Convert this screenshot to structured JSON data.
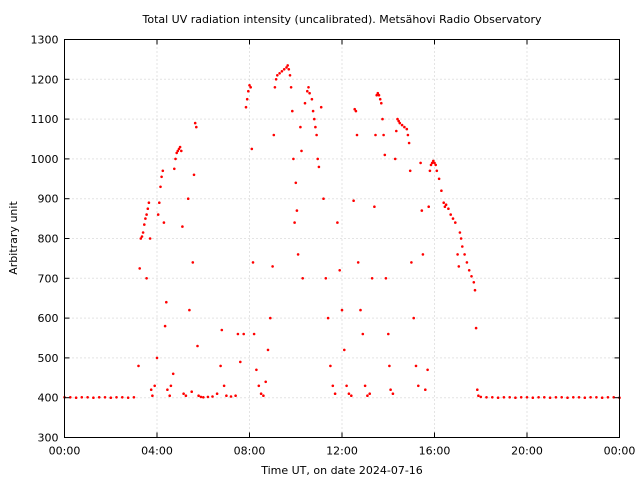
{
  "chart_data": {
    "type": "scatter",
    "title": "Total UV radiation intensity (uncalibrated). Metsähovi Radio Observatory",
    "xlabel": "Time UT, on date 2024-07-16",
    "ylabel": "Arbitrary unit",
    "xlim": [
      0,
      24
    ],
    "ylim": [
      300,
      1300
    ],
    "x_ticks": [
      {
        "value": 0,
        "label": "00:00"
      },
      {
        "value": 4,
        "label": "04:00"
      },
      {
        "value": 8,
        "label": "08:00"
      },
      {
        "value": 12,
        "label": "12:00"
      },
      {
        "value": 16,
        "label": "16:00"
      },
      {
        "value": 20,
        "label": "20:00"
      },
      {
        "value": 24,
        "label": "00:00"
      }
    ],
    "y_ticks": [
      300,
      400,
      500,
      600,
      700,
      800,
      900,
      1000,
      1100,
      1200,
      1300
    ],
    "grid": true,
    "legend": "none",
    "marker_color": "#ff0000",
    "series": [
      {
        "points": [
          [
            0.0,
            401
          ],
          [
            0.25,
            401
          ],
          [
            0.5,
            400
          ],
          [
            0.75,
            401
          ],
          [
            1.0,
            401
          ],
          [
            1.25,
            400
          ],
          [
            1.5,
            401
          ],
          [
            1.75,
            401
          ],
          [
            2.0,
            400
          ],
          [
            2.25,
            401
          ],
          [
            2.5,
            401
          ],
          [
            2.75,
            400
          ],
          [
            3.0,
            401
          ],
          [
            3.2,
            480
          ],
          [
            3.25,
            725
          ],
          [
            3.3,
            800
          ],
          [
            3.35,
            805
          ],
          [
            3.4,
            815
          ],
          [
            3.45,
            835
          ],
          [
            3.5,
            850
          ],
          [
            3.55,
            860
          ],
          [
            3.6,
            875
          ],
          [
            3.65,
            890
          ],
          [
            3.55,
            700
          ],
          [
            3.7,
            800
          ],
          [
            3.75,
            420
          ],
          [
            3.8,
            405
          ],
          [
            3.9,
            430
          ],
          [
            4.0,
            500
          ],
          [
            4.05,
            860
          ],
          [
            4.1,
            890
          ],
          [
            4.15,
            930
          ],
          [
            4.2,
            955
          ],
          [
            4.25,
            970
          ],
          [
            4.3,
            840
          ],
          [
            4.35,
            580
          ],
          [
            4.4,
            640
          ],
          [
            4.45,
            420
          ],
          [
            4.55,
            405
          ],
          [
            4.6,
            430
          ],
          [
            4.7,
            460
          ],
          [
            4.75,
            975
          ],
          [
            4.8,
            1000
          ],
          [
            4.85,
            1015
          ],
          [
            4.9,
            1020
          ],
          [
            4.95,
            1025
          ],
          [
            5.0,
            1030
          ],
          [
            5.05,
            1020
          ],
          [
            5.1,
            830
          ],
          [
            5.15,
            410
          ],
          [
            5.25,
            405
          ],
          [
            5.35,
            900
          ],
          [
            5.4,
            620
          ],
          [
            5.5,
            415
          ],
          [
            5.55,
            740
          ],
          [
            5.6,
            960
          ],
          [
            5.65,
            1090
          ],
          [
            5.7,
            1080
          ],
          [
            5.75,
            530
          ],
          [
            5.8,
            405
          ],
          [
            5.9,
            402
          ],
          [
            6.0,
            401
          ],
          [
            6.2,
            402
          ],
          [
            6.4,
            403
          ],
          [
            6.6,
            410
          ],
          [
            6.75,
            480
          ],
          [
            6.8,
            570
          ],
          [
            6.9,
            430
          ],
          [
            7.0,
            405
          ],
          [
            7.2,
            403
          ],
          [
            7.4,
            405
          ],
          [
            7.5,
            560
          ],
          [
            7.6,
            490
          ],
          [
            7.75,
            560
          ],
          [
            7.85,
            1130
          ],
          [
            7.9,
            1150
          ],
          [
            7.95,
            1170
          ],
          [
            8.0,
            1185
          ],
          [
            8.05,
            1180
          ],
          [
            8.1,
            1025
          ],
          [
            8.15,
            740
          ],
          [
            8.2,
            560
          ],
          [
            8.3,
            470
          ],
          [
            8.4,
            430
          ],
          [
            8.5,
            410
          ],
          [
            8.6,
            405
          ],
          [
            8.7,
            440
          ],
          [
            8.8,
            520
          ],
          [
            8.9,
            600
          ],
          [
            9.0,
            730
          ],
          [
            9.05,
            1060
          ],
          [
            9.1,
            1180
          ],
          [
            9.15,
            1200
          ],
          [
            9.2,
            1210
          ],
          [
            9.3,
            1215
          ],
          [
            9.4,
            1220
          ],
          [
            9.5,
            1225
          ],
          [
            9.6,
            1230
          ],
          [
            9.65,
            1235
          ],
          [
            9.7,
            1225
          ],
          [
            9.75,
            1210
          ],
          [
            9.8,
            1180
          ],
          [
            9.85,
            1120
          ],
          [
            9.9,
            1000
          ],
          [
            9.95,
            840
          ],
          [
            10.0,
            940
          ],
          [
            10.05,
            870
          ],
          [
            10.1,
            760
          ],
          [
            10.2,
            1080
          ],
          [
            10.25,
            1020
          ],
          [
            10.3,
            700
          ],
          [
            10.4,
            1140
          ],
          [
            10.5,
            1170
          ],
          [
            10.55,
            1180
          ],
          [
            10.6,
            1165
          ],
          [
            10.7,
            1150
          ],
          [
            10.75,
            1120
          ],
          [
            10.8,
            1100
          ],
          [
            10.85,
            1080
          ],
          [
            10.9,
            1060
          ],
          [
            10.95,
            1000
          ],
          [
            11.0,
            980
          ],
          [
            11.1,
            1130
          ],
          [
            11.2,
            900
          ],
          [
            11.3,
            700
          ],
          [
            11.4,
            600
          ],
          [
            11.5,
            480
          ],
          [
            11.6,
            430
          ],
          [
            11.7,
            410
          ],
          [
            11.8,
            840
          ],
          [
            11.9,
            720
          ],
          [
            12.0,
            620
          ],
          [
            12.1,
            520
          ],
          [
            12.2,
            430
          ],
          [
            12.3,
            410
          ],
          [
            12.4,
            405
          ],
          [
            12.5,
            895
          ],
          [
            12.55,
            1125
          ],
          [
            12.6,
            1120
          ],
          [
            12.65,
            1060
          ],
          [
            12.7,
            740
          ],
          [
            12.8,
            620
          ],
          [
            12.9,
            560
          ],
          [
            13.0,
            430
          ],
          [
            13.1,
            405
          ],
          [
            13.2,
            410
          ],
          [
            13.3,
            700
          ],
          [
            13.4,
            880
          ],
          [
            13.45,
            1060
          ],
          [
            13.5,
            1160
          ],
          [
            13.55,
            1165
          ],
          [
            13.6,
            1160
          ],
          [
            13.65,
            1150
          ],
          [
            13.7,
            1140
          ],
          [
            13.75,
            1100
          ],
          [
            13.8,
            1060
          ],
          [
            13.85,
            1010
          ],
          [
            13.9,
            700
          ],
          [
            14.0,
            560
          ],
          [
            14.05,
            480
          ],
          [
            14.1,
            420
          ],
          [
            14.2,
            410
          ],
          [
            14.3,
            1000
          ],
          [
            14.35,
            1070
          ],
          [
            14.4,
            1100
          ],
          [
            14.45,
            1095
          ],
          [
            14.5,
            1090
          ],
          [
            14.6,
            1085
          ],
          [
            14.7,
            1080
          ],
          [
            14.8,
            1075
          ],
          [
            14.85,
            1060
          ],
          [
            14.9,
            1040
          ],
          [
            14.95,
            970
          ],
          [
            15.0,
            740
          ],
          [
            15.1,
            600
          ],
          [
            15.2,
            480
          ],
          [
            15.3,
            430
          ],
          [
            15.4,
            990
          ],
          [
            15.45,
            870
          ],
          [
            15.5,
            760
          ],
          [
            15.6,
            420
          ],
          [
            15.7,
            470
          ],
          [
            15.75,
            880
          ],
          [
            15.8,
            970
          ],
          [
            15.85,
            985
          ],
          [
            15.9,
            990
          ],
          [
            15.95,
            995
          ],
          [
            16.0,
            990
          ],
          [
            16.05,
            985
          ],
          [
            16.1,
            970
          ],
          [
            16.2,
            950
          ],
          [
            16.3,
            920
          ],
          [
            16.4,
            890
          ],
          [
            16.45,
            880
          ],
          [
            16.5,
            885
          ],
          [
            16.6,
            875
          ],
          [
            16.7,
            860
          ],
          [
            16.8,
            850
          ],
          [
            16.9,
            840
          ],
          [
            17.0,
            760
          ],
          [
            17.05,
            730
          ],
          [
            17.1,
            815
          ],
          [
            17.15,
            800
          ],
          [
            17.2,
            780
          ],
          [
            17.3,
            760
          ],
          [
            17.4,
            740
          ],
          [
            17.5,
            720
          ],
          [
            17.6,
            705
          ],
          [
            17.7,
            690
          ],
          [
            17.75,
            670
          ],
          [
            17.8,
            575
          ],
          [
            17.85,
            420
          ],
          [
            17.9,
            405
          ],
          [
            18.0,
            402
          ],
          [
            18.25,
            401
          ],
          [
            18.5,
            401
          ],
          [
            18.75,
            400
          ],
          [
            19.0,
            401
          ],
          [
            19.25,
            401
          ],
          [
            19.5,
            400
          ],
          [
            19.75,
            401
          ],
          [
            20.0,
            401
          ],
          [
            20.25,
            400
          ],
          [
            20.5,
            401
          ],
          [
            20.75,
            401
          ],
          [
            21.0,
            400
          ],
          [
            21.25,
            401
          ],
          [
            21.5,
            401
          ],
          [
            21.75,
            400
          ],
          [
            22.0,
            401
          ],
          [
            22.25,
            401
          ],
          [
            22.5,
            400
          ],
          [
            22.75,
            401
          ],
          [
            23.0,
            401
          ],
          [
            23.25,
            400
          ],
          [
            23.5,
            401
          ],
          [
            23.75,
            401
          ],
          [
            24.0,
            400
          ]
        ]
      }
    ]
  }
}
